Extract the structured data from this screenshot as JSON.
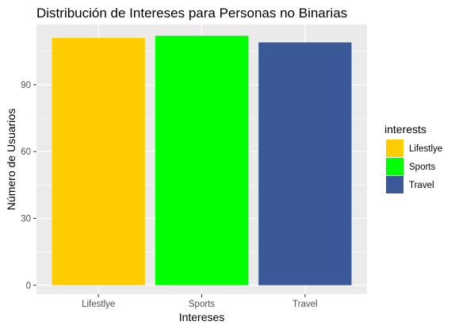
{
  "chart_data": {
    "type": "bar",
    "title": "Distribución de Intereses para Personas no Binarias",
    "xlabel": "Intereses",
    "ylabel": "Número de Usuarios",
    "categories": [
      "Lifestlye",
      "Sports",
      "Travel"
    ],
    "values": [
      111,
      112,
      109
    ],
    "colors": [
      "#FFCC00",
      "#00FF00",
      "#3B5998"
    ],
    "ylim": [
      -4,
      117
    ],
    "yticks": [
      0,
      30,
      60,
      90
    ],
    "grid": true,
    "background": "#EBEBEB",
    "legend": {
      "title": "interests",
      "position": "right",
      "items": [
        "Lifestlye",
        "Sports",
        "Travel"
      ]
    }
  }
}
